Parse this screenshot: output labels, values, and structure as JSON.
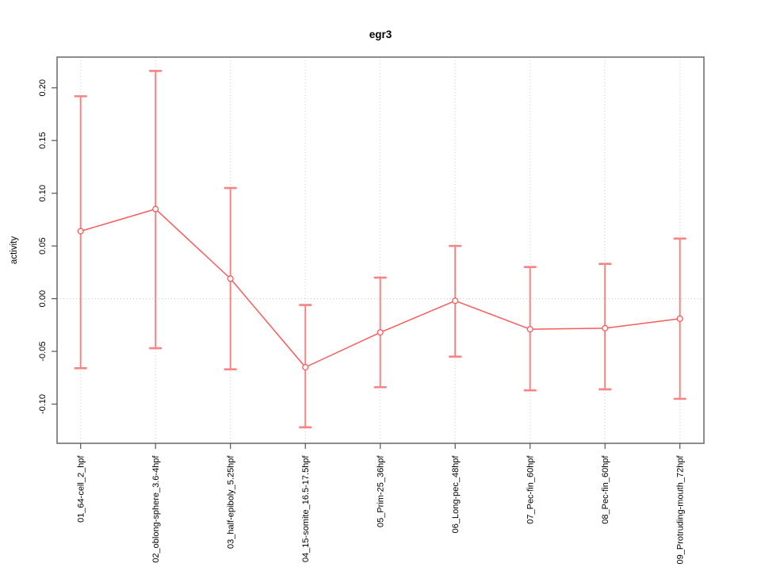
{
  "chart_data": {
    "type": "line",
    "title": "egr3",
    "xlabel": "",
    "ylabel": "activity",
    "categories": [
      "01_64-cell_2_hpf",
      "02_oblong-sphere_3.6-4hpf",
      "03_half-epiboly_5.25hpf",
      "04_15-somite_16.5-17.5hpf",
      "05_Prim-25_36hpf",
      "06_Long-pec_48hpf",
      "07_Pec-fin_60hpf",
      "08_Pec-fin_60hpf",
      "09_Protruding-mouth_72hpf"
    ],
    "series": [
      {
        "name": "egr3",
        "values": [
          0.064,
          0.085,
          0.019,
          -0.065,
          -0.032,
          -0.002,
          -0.029,
          -0.028,
          -0.019
        ],
        "error_high": [
          0.192,
          0.216,
          0.105,
          -0.006,
          0.02,
          0.05,
          0.03,
          0.033,
          0.057
        ],
        "error_low": [
          -0.066,
          -0.047,
          -0.067,
          -0.122,
          -0.084,
          -0.055,
          -0.087,
          -0.086,
          -0.095
        ]
      }
    ],
    "marker": "open-circle",
    "yticks": [
      -0.1,
      -0.05,
      0.0,
      0.05,
      0.1,
      0.15,
      0.2
    ],
    "ylim": [
      -0.137,
      0.229
    ],
    "grid": {
      "vertical": "dotted gray line at each category",
      "horizontal": "dotted gray line at y = 0",
      "style": "dotted"
    },
    "legend": "none",
    "colors": {
      "series_line": "#f65c5c",
      "error_bar": "#f88383",
      "marker_stroke": "#f65c5c",
      "marker_fill": "#ffffff",
      "grid": "#c9c9c9",
      "box": "#6f6f6f",
      "tick": "#555555",
      "text": "#000000",
      "background": "#ffffff"
    }
  }
}
